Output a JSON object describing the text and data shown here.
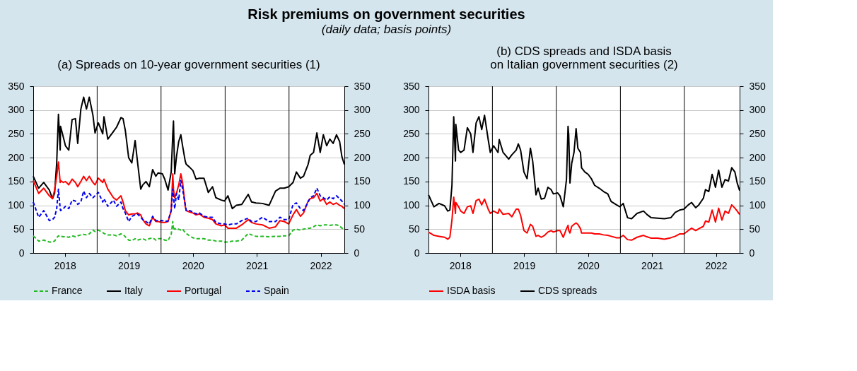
{
  "chart_data": [
    {
      "type": "other",
      "title": "Risk premiums on government securities",
      "subtitle": "(daily data; basis points)"
    },
    {
      "type": "line",
      "title": "(a) Spreads on 10-year government securities (1)",
      "x": [
        "2018-01-01",
        "2018-02-01",
        "2018-03-02",
        "2018-04-03",
        "2018-04-21",
        "2018-05-03",
        "2018-05-15",
        "2018-05-25",
        "2018-06-04",
        "2018-06-06",
        "2018-06-22",
        "2018-07-04",
        "2018-07-23",
        "2018-08-11",
        "2018-08-30",
        "2018-09-12",
        "2018-09-30",
        "2018-10-16",
        "2018-11-01",
        "2018-11-17",
        "2018-12-08",
        "2018-12-20",
        "2019-01-08",
        "2019-02-02",
        "2019-02-09",
        "2019-03-03",
        "2019-04-04",
        "2019-04-22",
        "2019-05-17",
        "2019-05-29",
        "2019-06-11",
        "2019-06-30",
        "2019-07-18",
        "2019-08-06",
        "2019-08-19",
        "2019-09-07",
        "2019-09-19",
        "2019-10-07",
        "2019-10-26",
        "2019-11-14",
        "2019-12-02",
        "2019-12-15",
        "2020-01-09",
        "2020-01-22",
        "2020-02-10",
        "2020-02-28",
        "2020-03-08",
        "2020-03-12",
        "2020-03-19",
        "2020-03-29",
        "2020-04-11",
        "2020-04-23",
        "2020-05-03",
        "2020-05-18",
        "2020-05-24",
        "2020-06-12",
        "2020-07-01",
        "2020-07-19",
        "2020-08-07",
        "2020-09-02",
        "2020-09-27",
        "2020-10-21",
        "2020-11-09",
        "2020-12-10",
        "2020-12-29",
        "2021-01-17",
        "2021-02-11",
        "2021-03-06",
        "2021-04-06",
        "2021-05-13",
        "2021-06-01",
        "2021-06-26",
        "2021-08-02",
        "2021-09-09",
        "2021-10-16",
        "2021-11-10",
        "2021-12-05",
        "2021-12-30",
        "2022-01-24",
        "2022-02-12",
        "2022-03-07",
        "2022-03-25",
        "2022-04-20",
        "2022-05-02",
        "2022-05-21",
        "2022-06-09",
        "2022-06-28",
        "2022-07-16",
        "2022-08-04",
        "2022-08-22",
        "2022-09-10",
        "2022-09-29",
        "2022-10-17",
        "2022-10-30",
        "2022-11-13"
      ],
      "series": [
        {
          "name": "France",
          "color": "#22bb22",
          "line_style": "dashed",
          "values": [
            36,
            25,
            27,
            23,
            23,
            25,
            32,
            36,
            34,
            35,
            34,
            34,
            33,
            36,
            34,
            36,
            38,
            39,
            38,
            40,
            48,
            45,
            48,
            43,
            41,
            38,
            38,
            36,
            40,
            39,
            34,
            27,
            26,
            30,
            27,
            29,
            30,
            27,
            30,
            32,
            27,
            30,
            30,
            27,
            26,
            39,
            66,
            48,
            52,
            48,
            50,
            48,
            50,
            43,
            41,
            36,
            32,
            30,
            30,
            30,
            27,
            27,
            25,
            25,
            23,
            23,
            25,
            25,
            27,
            41,
            38,
            35,
            35,
            34,
            35,
            35,
            36,
            36,
            48,
            50,
            48,
            50,
            52,
            52,
            55,
            59,
            57,
            59,
            59,
            58,
            59,
            59,
            57,
            52,
            50
          ]
        },
        {
          "name": "Italy",
          "color": "#000000",
          "line_style": "solid",
          "values": [
            161,
            136,
            148,
            132,
            114,
            125,
            189,
            291,
            216,
            266,
            243,
            225,
            216,
            280,
            282,
            230,
            302,
            327,
            302,
            327,
            289,
            252,
            273,
            250,
            286,
            239,
            255,
            264,
            284,
            282,
            257,
            200,
            189,
            236,
            193,
            134,
            143,
            150,
            139,
            175,
            161,
            168,
            166,
            155,
            132,
            170,
            248,
            277,
            166,
            202,
            234,
            248,
            225,
            193,
            186,
            180,
            173,
            155,
            157,
            157,
            127,
            139,
            116,
            111,
            109,
            120,
            93,
            100,
            102,
            123,
            107,
            105,
            104,
            100,
            130,
            136,
            136,
            139,
            148,
            170,
            157,
            161,
            186,
            205,
            211,
            252,
            211,
            248,
            225,
            239,
            230,
            248,
            234,
            202,
            186
          ]
        },
        {
          "name": "Portugal",
          "color": "#ff0000",
          "line_style": "solid",
          "values": [
            152,
            125,
            136,
            120,
            114,
            132,
            161,
            191,
            148,
            152,
            148,
            150,
            143,
            155,
            148,
            139,
            150,
            161,
            152,
            161,
            148,
            143,
            157,
            148,
            155,
            134,
            116,
            111,
            120,
            107,
            89,
            80,
            82,
            82,
            84,
            80,
            70,
            61,
            57,
            75,
            66,
            66,
            64,
            64,
            66,
            89,
            166,
            134,
            116,
            125,
            143,
            166,
            148,
            98,
            89,
            86,
            84,
            80,
            82,
            75,
            73,
            70,
            61,
            57,
            59,
            52,
            52,
            52,
            59,
            70,
            64,
            61,
            59,
            52,
            55,
            68,
            66,
            61,
            80,
            91,
            77,
            84,
            109,
            114,
            116,
            125,
            109,
            114,
            102,
            107,
            102,
            105,
            100,
            98,
            93
          ]
        },
        {
          "name": "Spain",
          "color": "#0000ee",
          "line_style": "dashed",
          "values": [
            107,
            75,
            89,
            68,
            70,
            75,
            93,
            134,
            93,
            89,
            93,
            98,
            93,
            111,
            109,
            102,
            107,
            130,
            116,
            125,
            116,
            120,
            127,
            107,
            114,
            98,
            111,
            98,
            107,
            93,
            84,
            66,
            77,
            80,
            82,
            75,
            70,
            66,
            61,
            77,
            68,
            68,
            68,
            66,
            67,
            89,
            134,
            120,
            93,
            125,
            111,
            152,
            134,
            102,
            89,
            89,
            86,
            82,
            84,
            77,
            75,
            75,
            64,
            61,
            61,
            59,
            61,
            61,
            68,
            73,
            66,
            66,
            75,
            66,
            66,
            75,
            70,
            70,
            102,
            105,
            93,
            89,
            107,
            116,
            120,
            136,
            120,
            116,
            111,
            118,
            114,
            120,
            114,
            109,
            102
          ]
        }
      ],
      "xlim": [
        "2018-01-01",
        "2022-11-13"
      ],
      "xticks": [
        {
          "value": "2018-07-01",
          "label": "2018"
        },
        {
          "value": "2019-07-01",
          "label": "2019"
        },
        {
          "value": "2020-07-01",
          "label": "2020"
        },
        {
          "value": "2021-07-01",
          "label": "2021"
        },
        {
          "value": "2022-07-01",
          "label": "2022"
        }
      ],
      "ylim": [
        0,
        350
      ],
      "yticks": [
        0,
        50,
        100,
        150,
        200,
        250,
        300,
        350
      ],
      "y2lim": [
        0,
        350
      ],
      "y2ticks": [
        0,
        50,
        100,
        150,
        200,
        250,
        300,
        350
      ],
      "ref_lines": [
        {
          "axis": "x",
          "value": "2019-01-01",
          "color": "#000000"
        },
        {
          "axis": "x",
          "value": "2020-01-01",
          "color": "#000000"
        },
        {
          "axis": "x",
          "value": "2021-01-01",
          "color": "#000000"
        },
        {
          "axis": "x",
          "value": "2022-01-01",
          "color": "#000000"
        }
      ],
      "grid": "y",
      "legend": "bottom"
    },
    {
      "type": "line",
      "title": "(b) CDS spreads and ISDA basis\non Italian government securities (2)",
      "x": [
        "2018-01-01",
        "2018-02-01",
        "2018-03-02",
        "2018-04-03",
        "2018-04-21",
        "2018-05-03",
        "2018-05-15",
        "2018-05-25",
        "2018-06-04",
        "2018-06-06",
        "2018-06-22",
        "2018-07-04",
        "2018-07-23",
        "2018-08-11",
        "2018-08-30",
        "2018-09-12",
        "2018-09-30",
        "2018-10-16",
        "2018-11-01",
        "2018-11-17",
        "2018-12-08",
        "2018-12-20",
        "2019-01-08",
        "2019-02-02",
        "2019-02-09",
        "2019-03-03",
        "2019-04-04",
        "2019-04-22",
        "2019-05-17",
        "2019-05-29",
        "2019-06-11",
        "2019-06-30",
        "2019-07-18",
        "2019-08-06",
        "2019-08-19",
        "2019-09-07",
        "2019-09-19",
        "2019-10-07",
        "2019-10-26",
        "2019-11-14",
        "2019-12-02",
        "2019-12-15",
        "2020-01-09",
        "2020-01-22",
        "2020-02-10",
        "2020-02-28",
        "2020-03-08",
        "2020-03-12",
        "2020-03-19",
        "2020-03-29",
        "2020-04-11",
        "2020-04-23",
        "2020-05-03",
        "2020-05-18",
        "2020-05-24",
        "2020-06-12",
        "2020-07-01",
        "2020-07-19",
        "2020-08-07",
        "2020-09-02",
        "2020-09-27",
        "2020-10-21",
        "2020-11-09",
        "2020-12-10",
        "2020-12-29",
        "2021-01-17",
        "2021-02-11",
        "2021-03-06",
        "2021-04-06",
        "2021-05-13",
        "2021-06-01",
        "2021-06-26",
        "2021-08-02",
        "2021-09-09",
        "2021-10-16",
        "2021-11-10",
        "2021-12-05",
        "2021-12-30",
        "2022-01-24",
        "2022-02-12",
        "2022-03-07",
        "2022-03-25",
        "2022-04-20",
        "2022-05-02",
        "2022-05-21",
        "2022-06-09",
        "2022-06-28",
        "2022-07-16",
        "2022-08-04",
        "2022-08-22",
        "2022-09-10",
        "2022-09-29",
        "2022-10-17",
        "2022-10-30",
        "2022-11-13"
      ],
      "series": [
        {
          "name": "ISDA basis",
          "color": "#ff0000",
          "line_style": "solid",
          "values": [
            44,
            37,
            35,
            33,
            29,
            33,
            69,
            117,
            83,
            106,
            97,
            88,
            83,
            97,
            99,
            83,
            110,
            113,
            101,
            113,
            92,
            83,
            88,
            83,
            92,
            81,
            83,
            76,
            92,
            92,
            79,
            47,
            42,
            60,
            56,
            35,
            37,
            33,
            37,
            44,
            47,
            44,
            47,
            47,
            33,
            51,
            58,
            47,
            42,
            56,
            60,
            63,
            60,
            51,
            42,
            42,
            42,
            42,
            40,
            40,
            38,
            37,
            35,
            32,
            32,
            37,
            28,
            27,
            33,
            37,
            34,
            31,
            31,
            29,
            32,
            35,
            40,
            40,
            47,
            52,
            47,
            51,
            56,
            67,
            65,
            90,
            65,
            94,
            69,
            88,
            83,
            101,
            94,
            88,
            81
          ]
        },
        {
          "name": "CDS spreads",
          "color": "#000000",
          "line_style": "solid",
          "values": [
            122,
            97,
            104,
            99,
            88,
            90,
            142,
            286,
            193,
            270,
            216,
            211,
            216,
            263,
            250,
            211,
            273,
            286,
            259,
            289,
            238,
            211,
            225,
            211,
            238,
            211,
            197,
            206,
            216,
            229,
            216,
            170,
            156,
            220,
            193,
            122,
            136,
            113,
            115,
            138,
            133,
            124,
            126,
            120,
            97,
            154,
            266,
            247,
            147,
            188,
            211,
            261,
            220,
            211,
            179,
            170,
            165,
            156,
            142,
            136,
            129,
            124,
            108,
            101,
            97,
            104,
            74,
            72,
            83,
            88,
            81,
            74,
            73,
            72,
            74,
            85,
            90,
            92,
            101,
            106,
            95,
            101,
            115,
            133,
            129,
            165,
            138,
            174,
            138,
            154,
            151,
            179,
            170,
            147,
            131
          ]
        }
      ],
      "xlim": [
        "2018-01-01",
        "2022-11-13"
      ],
      "xticks": [
        {
          "value": "2018-07-01",
          "label": "2018"
        },
        {
          "value": "2019-07-01",
          "label": "2019"
        },
        {
          "value": "2020-07-01",
          "label": "2020"
        },
        {
          "value": "2021-07-01",
          "label": "2021"
        },
        {
          "value": "2022-07-01",
          "label": "2022"
        }
      ],
      "ylim": [
        0,
        350
      ],
      "yticks": [
        0,
        50,
        100,
        150,
        200,
        250,
        300,
        350
      ],
      "y2lim": [
        0,
        350
      ],
      "y2ticks": [
        0,
        50,
        100,
        150,
        200,
        250,
        300,
        350
      ],
      "ref_lines": [
        {
          "axis": "x",
          "value": "2019-01-01",
          "color": "#000000"
        },
        {
          "axis": "x",
          "value": "2020-01-01",
          "color": "#000000"
        },
        {
          "axis": "x",
          "value": "2021-01-01",
          "color": "#000000"
        },
        {
          "axis": "x",
          "value": "2022-01-01",
          "color": "#000000"
        }
      ],
      "grid": "y",
      "legend": "bottom"
    }
  ]
}
